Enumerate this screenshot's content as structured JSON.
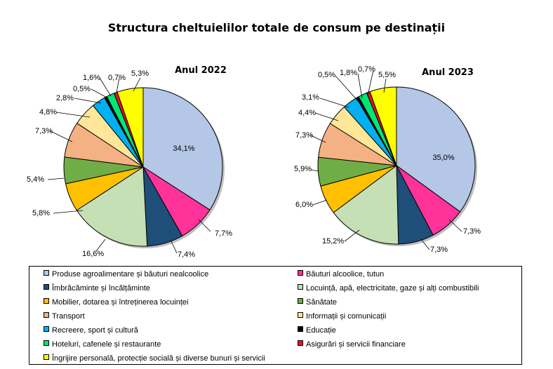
{
  "title": "Structura cheltuielilor totale de consum pe destinații",
  "chart_data": [
    {
      "type": "pie",
      "title": "Anul 2022",
      "categories": [
        "Produse agroalimentare și băuturi nealcoolice",
        "Băuturi alcoolice, tutun",
        "Îmbrăcăminte și încălțăminte",
        "Locuință, apă, electricitate, gaze și alți combustibili",
        "Mobilier, dotarea și întreținerea locuinței",
        "Sănătate",
        "Transport",
        "Informații și comunicații",
        "Recreere, sport și cultură",
        "Educație",
        "Hoteluri, cafenele și restaurante",
        "Asigurări și servicii financiare",
        "Îngrijire personală, protecție socială și diverse bunuri și servicii"
      ],
      "values": [
        34.1,
        7.7,
        7.4,
        16.6,
        5.8,
        5.4,
        7.3,
        4.8,
        2.8,
        0.5,
        1.6,
        0.7,
        5.3
      ],
      "labels": [
        "34,1%",
        "7,7%",
        "7,4%",
        "16,6%",
        "5,8%",
        "5,4%",
        "7,3%",
        "4,8%",
        "2,8%",
        "0,5%",
        "1,6%",
        "0,7%",
        "5,3%"
      ]
    },
    {
      "type": "pie",
      "title": "Anul 2023",
      "categories": [
        "Produse agroalimentare și băuturi nealcoolice",
        "Băuturi alcoolice, tutun",
        "Îmbrăcăminte și încălțăminte",
        "Locuință, apă, electricitate, gaze și alți combustibili",
        "Mobilier, dotarea și întreținerea locuinței",
        "Sănătate",
        "Transport",
        "Informații și comunicații",
        "Recreere, sport și cultură",
        "Educație",
        "Hoteluri, cafenele și restaurante",
        "Asigurări și servicii financiare",
        "Îngrijire personală, protecție socială și diverse bunuri și servicii"
      ],
      "values": [
        35.0,
        7.3,
        7.3,
        15.2,
        6.0,
        5.9,
        7.3,
        4.4,
        3.1,
        0.5,
        1.8,
        0.7,
        5.5
      ],
      "labels": [
        "35,0%",
        "7,3%",
        "7,3%",
        "15,2%",
        "6,0%",
        "5,9%",
        "7,3%",
        "4,4%",
        "3,1%",
        "0,5%",
        "1,8%",
        "0,7%",
        "5,5%"
      ]
    }
  ],
  "legend": {
    "placement": "bottom",
    "items": [
      {
        "label": "Produse agroalimentare și băuturi nealcoolice",
        "color": "#b4c7e7"
      },
      {
        "label": "Băuturi alcoolice, tutun",
        "color": "#ff3399"
      },
      {
        "label": "Îmbrăcăminte și încălțăminte",
        "color": "#1f4e79"
      },
      {
        "label": "Locuință, apă, electricitate, gaze și alți combustibili",
        "color": "#c5e0b4"
      },
      {
        "label": "Mobilier,  dotarea și întreținerea locuinței",
        "color": "#ffc000"
      },
      {
        "label": "Sănătate",
        "color": "#70ad47"
      },
      {
        "label": "Transport",
        "color": "#f4b183"
      },
      {
        "label": "Informații și comunicații",
        "color": "#ffe699"
      },
      {
        "label": "Recreere, sport și cultură",
        "color": "#00b0f0"
      },
      {
        "label": "Educație",
        "color": "#000000"
      },
      {
        "label": "Hoteluri,  cafenele și restaurante",
        "color": "#00e676"
      },
      {
        "label": "Asigurări  și servicii financiare",
        "color": "#e81123"
      },
      {
        "label": "Îngrijire personală, protecție socială și diverse bunuri și servicii",
        "color": "#ffff00"
      }
    ]
  }
}
